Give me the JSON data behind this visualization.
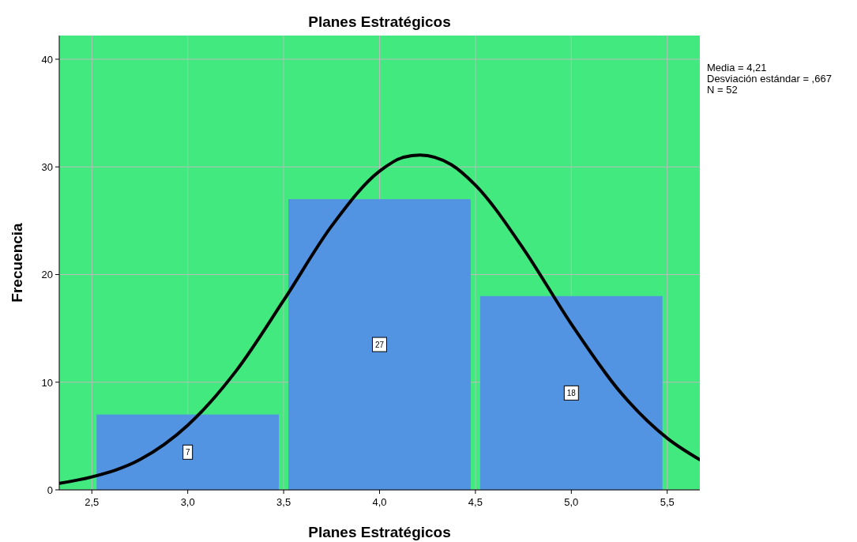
{
  "chart_data": {
    "type": "histogram",
    "title": "Planes Estratégicos",
    "xlabel": "Planes Estratégicos",
    "ylabel": "Frecuencia",
    "bins": [
      2.5,
      3.5,
      4.5,
      5.5
    ],
    "values": [
      7,
      27,
      18
    ],
    "color": "#5294e2",
    "value_labels": [
      "7",
      "27",
      "18"
    ],
    "series": [
      {
        "type": "line",
        "color": "#000000",
        "x": [
          2.33,
          2.5,
          2.75,
          3.0,
          3.25,
          3.5,
          3.75,
          4.0,
          4.125,
          4.21,
          4.375,
          4.5,
          4.75,
          5.0,
          5.25,
          5.5,
          5.67
        ],
        "values": [
          0.6,
          1.2,
          2.8,
          6.0,
          11.0,
          17.6,
          24.5,
          29.6,
          30.9,
          31.1,
          30.2,
          28.3,
          22.4,
          15.4,
          9.2,
          4.8,
          2.8
        ]
      }
    ],
    "xlim": [
      2.33,
      5.67
    ],
    "ylim": [
      0,
      42.2
    ],
    "xticks": [
      {
        "value": 2.5,
        "label": "2,5"
      },
      {
        "value": 3,
        "label": "3,0"
      },
      {
        "value": 3.5,
        "label": "3,5"
      },
      {
        "value": 4,
        "label": "4,0"
      },
      {
        "value": 4.5,
        "label": "4,5"
      },
      {
        "value": 5,
        "label": "5,0"
      },
      {
        "value": 5.5,
        "label": "5,5"
      }
    ],
    "yticks": [
      0,
      10,
      20,
      30,
      40
    ],
    "grid": true,
    "annotations": [
      "Media = 4,21",
      "Desviación estándar = ,667",
      "N = 52"
    ]
  }
}
